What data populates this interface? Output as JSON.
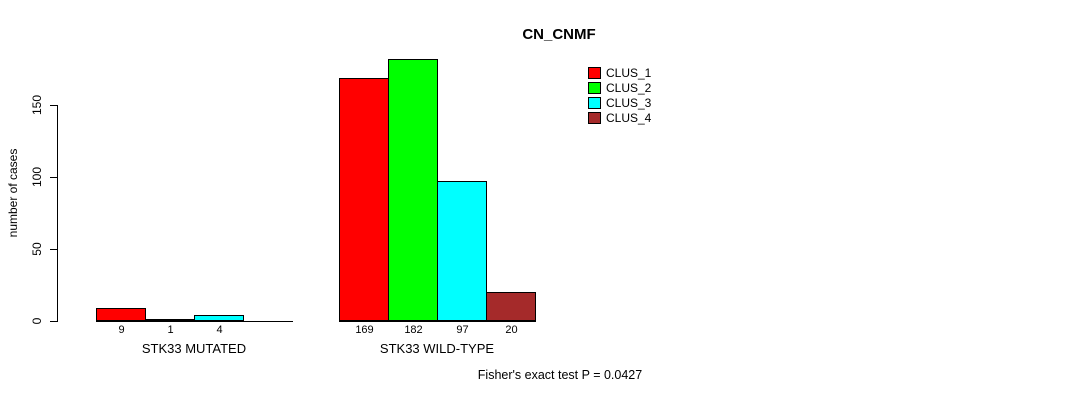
{
  "chart_data": {
    "type": "bar",
    "title": "CN_CNMF",
    "ylabel": "number of cases",
    "yticks": [
      0,
      50,
      100,
      150
    ],
    "ylim": [
      0,
      150
    ],
    "legend_position": "top-right",
    "grid": false,
    "clusters": [
      {
        "label": "CLUS_1",
        "color": "#ff0000"
      },
      {
        "label": "CLUS_2",
        "color": "#00ff00"
      },
      {
        "label": "CLUS_3",
        "color": "#00ffff"
      },
      {
        "label": "CLUS_4",
        "color": "#a52a2a"
      }
    ],
    "groups": [
      {
        "label": "STK33 MUTATED",
        "values": [
          9,
          1,
          4,
          0
        ],
        "bar_labels": [
          "9",
          "1",
          "4",
          ""
        ]
      },
      {
        "label": "STK33 WILD-TYPE",
        "values": [
          169,
          182,
          97,
          20
        ],
        "bar_labels": [
          "169",
          "182",
          "97",
          "20"
        ]
      }
    ],
    "footnote": "Fisher's exact test P = 0.0427"
  }
}
